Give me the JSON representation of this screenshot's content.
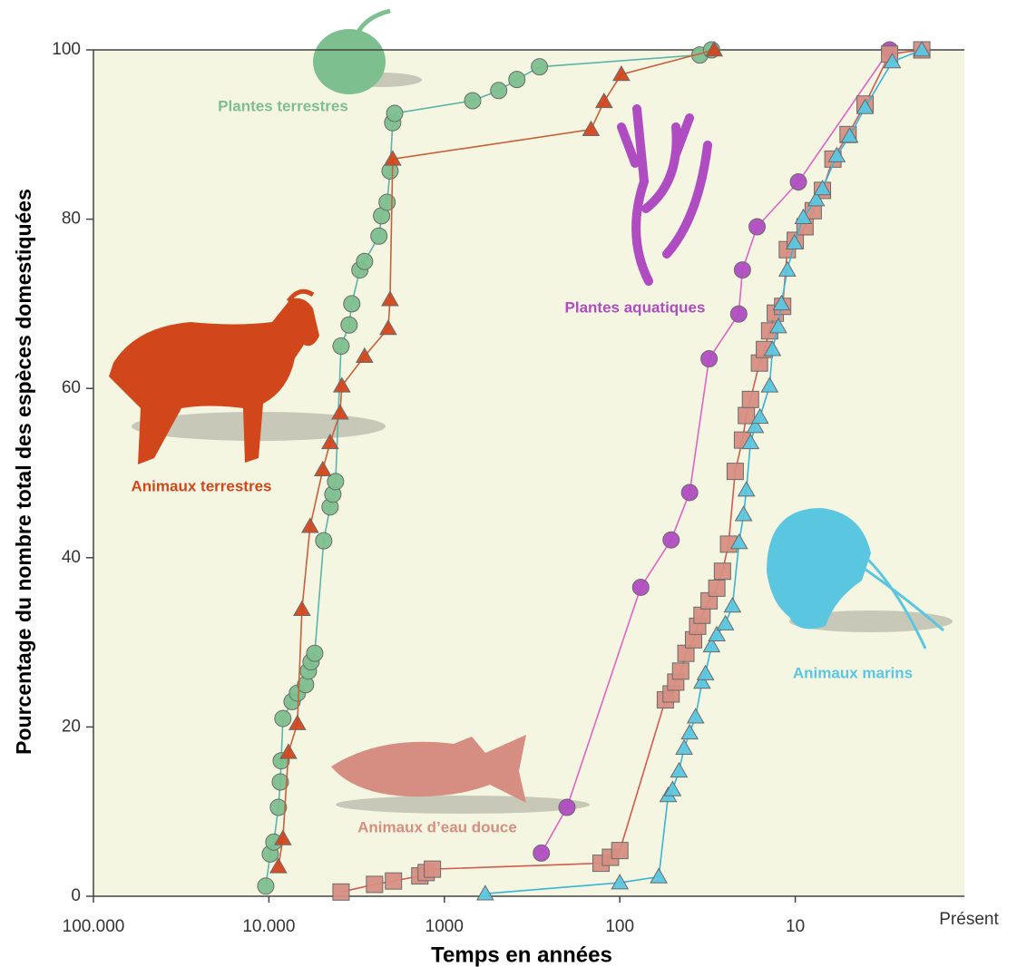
{
  "chart_data": {
    "type": "line",
    "xlabel": "Temps en années",
    "ylabel": "Pourcentage du nombre total des espèces domestiquées",
    "xscale": "log",
    "xlim": [
      100000,
      1
    ],
    "ylim": [
      0,
      100
    ],
    "xticks": [
      {
        "value": 100000,
        "label": "100.000"
      },
      {
        "value": 10000,
        "label": "10.000"
      },
      1000,
      100,
      10,
      {
        "value": 1,
        "label": "Présent"
      }
    ],
    "yticks": [
      0,
      20,
      40,
      60,
      80,
      100
    ],
    "series": [
      {
        "name": "Plantes terrestres",
        "color": "#7dbf8e",
        "line_color": "#5cb3a8",
        "marker": "circle",
        "x": [
          10420,
          9820,
          9370,
          8830,
          8610,
          8510,
          8320,
          7380,
          6880,
          6180,
          5960,
          5750,
          5480,
          4870,
          4480,
          4320,
          4170,
          3880,
          3490,
          3370,
          3030,
          2850,
          2360,
          2280,
          2120,
          2040,
          1970,
          1920,
          690,
          490,
          386,
          287,
          35,
          30
        ],
        "values": [
          1.2,
          5.0,
          6.4,
          10.5,
          13.5,
          16,
          21,
          23,
          24,
          25,
          26.6,
          27.7,
          28.7,
          42,
          46,
          47.5,
          49,
          65,
          67.5,
          70,
          74,
          75,
          78,
          80.4,
          82,
          85.7,
          91.4,
          92.5,
          94,
          95.2,
          96.5,
          98,
          99.4,
          100
        ]
      },
      {
        "name": "Animaux terrestres",
        "color": "#d2461c",
        "line_color": "#c8603a",
        "marker": "triangle",
        "x": [
          8830,
          8320,
          7740,
          6880,
          6480,
          5820,
          4930,
          4480,
          3930,
          3840,
          2850,
          2090,
          2040,
          1970,
          146,
          123,
          98,
          29
        ],
        "values": [
          3.5,
          6.8,
          17,
          20.4,
          33.9,
          43.7,
          50.4,
          53.6,
          57.1,
          60.3,
          63.8,
          67.1,
          70.5,
          87.1,
          90.6,
          93.9,
          97.1,
          100
        ]
      },
      {
        "name": "Plantes aquatiques",
        "color": "#b04cc2",
        "line_color": "#e064c4",
        "marker": "circle",
        "x": [
          280,
          200,
          76,
          51,
          40,
          31,
          21,
          20,
          16.5,
          9.6,
          2.9
        ],
        "values": [
          5.1,
          10.5,
          36.5,
          42.1,
          47.7,
          63.5,
          68.8,
          74,
          79.1,
          84.4,
          100
        ]
      },
      {
        "name": "Animaux d’eau douce",
        "color": "#d68e82",
        "line_color": "#d45a50",
        "marker": "square",
        "x": [
          3880,
          2500,
          1950,
          1380,
          1270,
          1170,
          128,
          113,
          100,
          55,
          51,
          48,
          45,
          42,
          38,
          36,
          34,
          31,
          28,
          26,
          24,
          22,
          20,
          19,
          18,
          16,
          15,
          14,
          13,
          11.8,
          11.1,
          10,
          8.8,
          7.9,
          7.0,
          6.1,
          5.0,
          4.0,
          2.9,
          1.9
        ],
        "values": [
          0.5,
          1.4,
          1.8,
          2.4,
          2.8,
          3.2,
          3.9,
          4.6,
          5.4,
          23.2,
          23.9,
          25.3,
          26.6,
          28.7,
          30.3,
          31.9,
          33.2,
          34.9,
          36.4,
          38.4,
          41.6,
          50.2,
          53.9,
          56.8,
          58.7,
          63,
          64.6,
          66.8,
          68.9,
          69.7,
          76.4,
          77.5,
          79.1,
          81,
          83.4,
          87.1,
          90,
          93.6,
          99.5,
          100
        ]
      },
      {
        "name": "Animaux marins",
        "color": "#5bc6e0",
        "line_color": "#38b4d8",
        "marker": "triangle",
        "x": [
          585,
          100,
          60,
          53,
          50,
          46,
          43,
          40,
          37,
          34,
          32.5,
          30,
          28,
          25,
          22.8,
          20.9,
          19.7,
          19,
          18,
          16.9,
          15.9,
          14,
          13.5,
          12.5,
          12,
          11.1,
          10.1,
          9,
          7.6,
          7.0,
          5.8,
          4.9,
          4.0,
          2.8,
          1.9
        ],
        "values": [
          0.3,
          1.6,
          2.3,
          11.9,
          12.6,
          14.8,
          17.5,
          19.3,
          21.2,
          25.3,
          26.3,
          29.6,
          30.9,
          32.2,
          34.3,
          41.8,
          45.1,
          48,
          53.6,
          55.5,
          56.6,
          60.3,
          64.6,
          67.3,
          70,
          74,
          77.2,
          80.2,
          82.3,
          83.6,
          87.5,
          89.8,
          93.2,
          98.6,
          100
        ]
      }
    ]
  }
}
